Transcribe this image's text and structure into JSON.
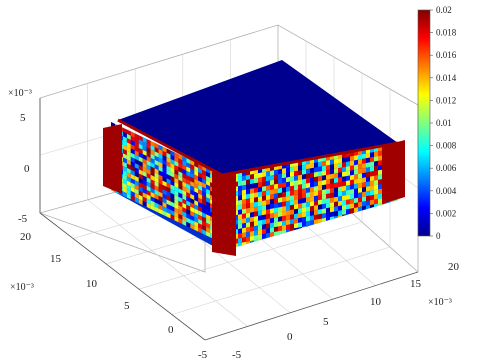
{
  "chart_data": {
    "type": "surface3d",
    "title": "",
    "xlabel": "",
    "ylabel": "",
    "zlabel": "",
    "x_ticks": [
      "-5",
      "0",
      "5",
      "10",
      "15",
      "20"
    ],
    "y_ticks": [
      "-5",
      "0",
      "5",
      "10",
      "15",
      "20"
    ],
    "z_ticks": [
      "-5",
      "0",
      "5"
    ],
    "x_multiplier": "×10⁻³",
    "y_multiplier": "×10⁻³",
    "z_multiplier": "×10⁻³",
    "xlim": [
      -0.005,
      0.02
    ],
    "ylim": [
      -0.005,
      0.02
    ],
    "zlim": [
      -0.005,
      0.005
    ],
    "grid": true,
    "colorbar": {
      "colormap": "jet",
      "range": [
        0,
        0.02
      ],
      "tick_labels": [
        "0",
        "0.002",
        "0.004",
        "0.006",
        "0.008",
        "0.01",
        "0.012",
        "0.014",
        "0.016",
        "0.018",
        "0.02"
      ],
      "placement": "right"
    },
    "body": {
      "description": "deformed cube, 0 to 0.02 in x and y, z from -0.0025 to 0.0025",
      "top_face_value": 0,
      "corner_value": 0.02,
      "side_faces": "random field 0 to 0.02"
    }
  }
}
